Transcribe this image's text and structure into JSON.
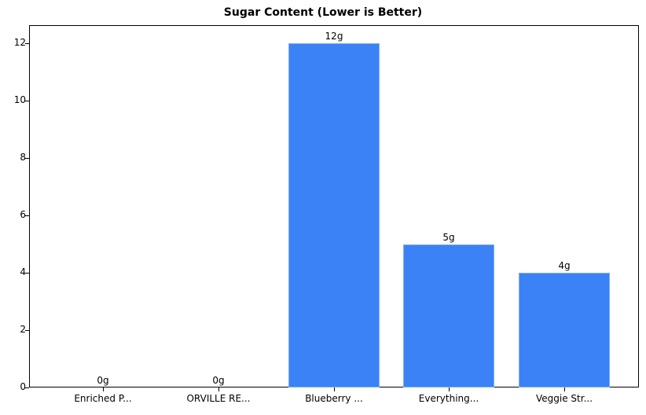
{
  "chart_data": {
    "type": "bar",
    "title": "Sugar Content (Lower is Better)",
    "categories": [
      "Enriched P...",
      "ORVILLE RE...",
      "Blueberry ...",
      "Everything...",
      "Veggie Str..."
    ],
    "values": [
      0,
      0,
      12,
      5,
      4
    ],
    "value_labels": [
      "0g",
      "0g",
      "12g",
      "5g",
      "4g"
    ],
    "xlabel": "",
    "ylabel": "",
    "ylim": [
      0,
      12.6
    ],
    "yticks": [
      0,
      2,
      4,
      6,
      8,
      10,
      12
    ],
    "grid": false,
    "legend": null,
    "bar_color": "#3b82f6"
  }
}
